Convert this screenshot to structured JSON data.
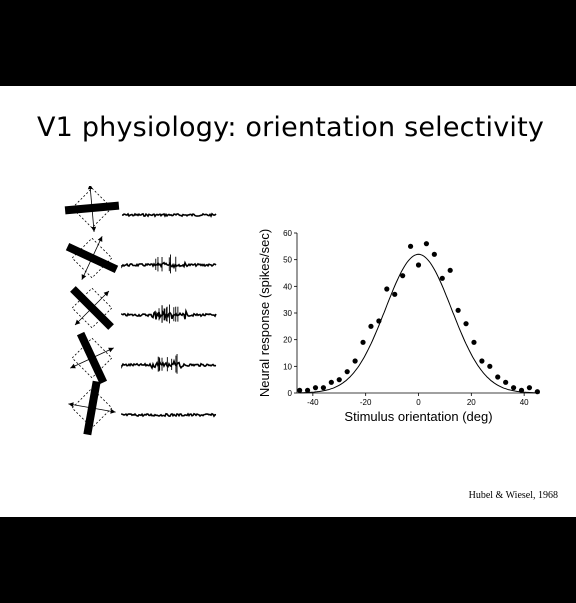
{
  "slide": {
    "title": "V1 physiology: orientation selectivity",
    "citation": "Hubel & Wiesel, 1968"
  },
  "stimulus_panel": {
    "bar_angles_deg": [
      -5,
      25,
      45,
      65,
      100
    ],
    "trace_burst_levels": [
      0,
      0.35,
      1,
      0.55,
      0
    ]
  },
  "chart_data": {
    "type": "scatter",
    "title": "",
    "xlabel": "Stimulus orientation (deg)",
    "ylabel": "Neural response (spikes/sec)",
    "xlim": [
      -46,
      46
    ],
    "ylim": [
      0,
      60
    ],
    "xticks": [
      -40,
      -20,
      0,
      20,
      40
    ],
    "yticks": [
      0,
      10,
      20,
      30,
      40,
      50,
      60
    ],
    "grid": false,
    "series": [
      {
        "kind": "points",
        "x": [
          -45,
          -42,
          -39,
          -36,
          -33,
          -30,
          -27,
          -24,
          -21,
          -18,
          -15,
          -12,
          -9,
          -6,
          -3,
          0,
          3,
          6,
          9,
          12,
          15,
          18,
          21,
          24,
          27,
          30,
          33,
          36,
          39,
          42,
          45
        ],
        "y": [
          1,
          1,
          2,
          2,
          4,
          5,
          8,
          12,
          19,
          25,
          27,
          39,
          37,
          44,
          55,
          48,
          56,
          52,
          43,
          46,
          31,
          26,
          19,
          12,
          10,
          6,
          4,
          2,
          1,
          2,
          0.5
        ]
      },
      {
        "kind": "fit",
        "model": "gaussian",
        "amplitude": 52,
        "center": 0,
        "sigma": 12.5,
        "baseline": 0
      }
    ]
  }
}
